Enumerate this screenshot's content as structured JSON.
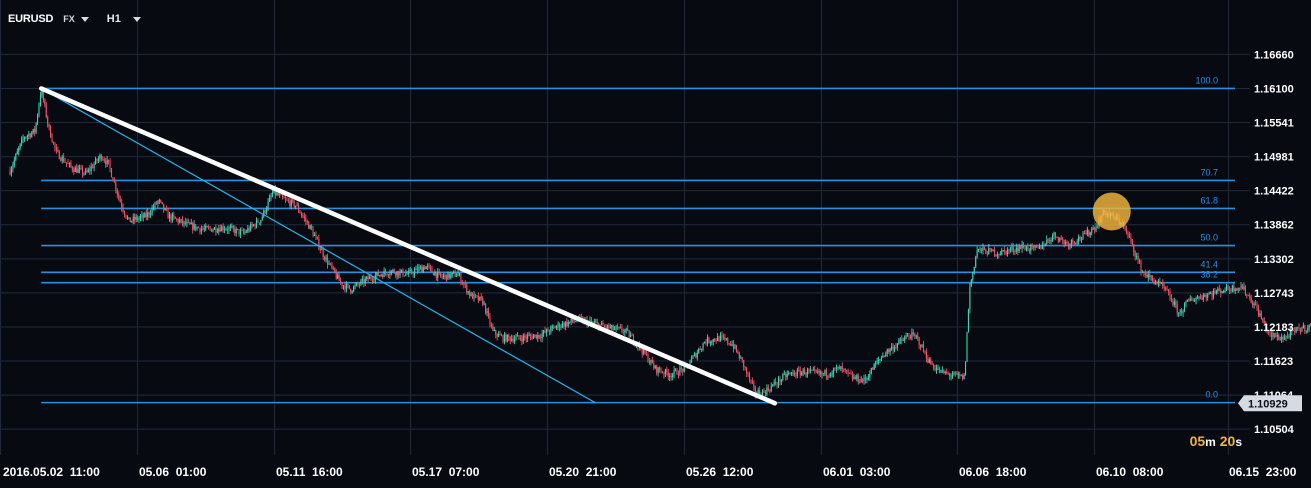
{
  "toolbar": {
    "symbol": "EURUSD",
    "market": "FX",
    "timeframe": "H1"
  },
  "timer": {
    "minutes": "05",
    "minutes_unit": "m",
    "seconds": "20",
    "seconds_unit": "s"
  },
  "colors": {
    "background": "#080a12",
    "grid": "#1c2a3c",
    "fib_line": "#2b8fe0",
    "channel_line": "#27b4e8",
    "trend_line": "#ffffff",
    "candle_up": "#3fd6b6",
    "candle_down": "#ef5466",
    "highlight_marker": "#f3b63c",
    "price_tag": "#d6dbe3",
    "axis_text": "#ffffff"
  },
  "chart_data": {
    "type": "candlestick",
    "symbol": "EURUSD",
    "timeframe": "H1",
    "x_tick_labels": [
      "2016.05.02  11:00",
      "05.06  01:00",
      "05.11  16:00",
      "05.17  07:00",
      "05.20  21:00",
      "05.26  12:00",
      "06.01  03:00",
      "06.06  18:00",
      "06.10  08:00",
      "06.15  23:00"
    ],
    "y_tick_labels": [
      "1.16660",
      "1.16100",
      "1.15541",
      "1.14981",
      "1.14422",
      "1.13862",
      "1.13302",
      "1.12743",
      "1.12183",
      "1.11623",
      "1.11064",
      "1.10504"
    ],
    "ylim": [
      1.1008,
      1.1706
    ],
    "current_price": "1.10929",
    "grid": true,
    "fibonacci": {
      "high": 1.161,
      "low": 1.1094,
      "levels": [
        {
          "label": "100.0",
          "price": 1.161
        },
        {
          "label": "70.7",
          "price": 1.1459
        },
        {
          "label": "61.8",
          "price": 1.1413
        },
        {
          "label": "50.0",
          "price": 1.1352
        },
        {
          "label": "41.4",
          "price": 1.1308
        },
        {
          "label": "38.2",
          "price": 1.1291
        },
        {
          "label": "0.0",
          "price": 1.1094
        }
      ]
    },
    "trend_line": {
      "from": {
        "date": "2016.05.03 12:00",
        "price": 1.161
      },
      "to": {
        "date": "05.28 00:00",
        "price": 1.1093
      }
    },
    "channel_line": {
      "from": {
        "date": "2016.05.03 12:00",
        "price": 1.161
      },
      "to": {
        "date": "05.22 00:00",
        "price": 1.1094
      }
    },
    "highlight": {
      "date": "06.08 06:00",
      "price": 1.1408
    },
    "price_path": [
      [
        "05.02 11:00",
        1.1475
      ],
      [
        "05.02 22:00",
        1.153
      ],
      [
        "05.03 07:00",
        1.154
      ],
      [
        "05.03 12:00",
        1.161
      ],
      [
        "05.03 18:00",
        1.1545
      ],
      [
        "05.04 00:00",
        1.1505
      ],
      [
        "05.04 12:00",
        1.148
      ],
      [
        "05.05 00:00",
        1.147
      ],
      [
        "05.05 06:00",
        1.1485
      ],
      [
        "05.05 12:00",
        1.15
      ],
      [
        "05.05 18:00",
        1.1485
      ],
      [
        "05.06 04:00",
        1.142
      ],
      [
        "05.06 10:00",
        1.1392
      ],
      [
        "05.07 00:00",
        1.14
      ],
      [
        "05.07 10:00",
        1.1425
      ],
      [
        "05.07 18:00",
        1.14
      ],
      [
        "05.08 10:00",
        1.1385
      ],
      [
        "05.09 00:00",
        1.1378
      ],
      [
        "05.09 14:00",
        1.1382
      ],
      [
        "05.10 06:00",
        1.1372
      ],
      [
        "05.10 20:00",
        1.1395
      ],
      [
        "05.11 06:00",
        1.144
      ],
      [
        "05.11 16:00",
        1.1425
      ],
      [
        "05.12 00:00",
        1.1418
      ],
      [
        "05.12 12:00",
        1.138
      ],
      [
        "05.13 00:00",
        1.133
      ],
      [
        "05.13 12:00",
        1.129
      ],
      [
        "05.13 20:00",
        1.128
      ],
      [
        "05.14 12:00",
        1.13
      ],
      [
        "05.15 04:00",
        1.131
      ],
      [
        "05.15 18:00",
        1.1305
      ],
      [
        "05.16 08:00",
        1.1318
      ],
      [
        "05.16 20:00",
        1.13
      ],
      [
        "05.17 10:00",
        1.1305
      ],
      [
        "05.17 20:00",
        1.127
      ],
      [
        "05.18 06:00",
        1.126
      ],
      [
        "05.18 14:00",
        1.121
      ],
      [
        "05.18 22:00",
        1.12
      ],
      [
        "05.19 12:00",
        1.12
      ],
      [
        "05.20 04:00",
        1.1205
      ],
      [
        "05.20 18:00",
        1.122
      ],
      [
        "05.21 10:00",
        1.123
      ],
      [
        "05.22 02:00",
        1.1222
      ],
      [
        "05.22 14:00",
        1.1215
      ],
      [
        "05.23 00:00",
        1.1212
      ],
      [
        "05.23 12:00",
        1.1185
      ],
      [
        "05.24 00:00",
        1.115
      ],
      [
        "05.24 12:00",
        1.114
      ],
      [
        "05.25 00:00",
        1.115
      ],
      [
        "05.25 08:00",
        1.1172
      ],
      [
        "05.25 16:00",
        1.1195
      ],
      [
        "05.26 04:00",
        1.12
      ],
      [
        "05.26 14:00",
        1.119
      ],
      [
        "05.26 22:00",
        1.116
      ],
      [
        "05.27 08:00",
        1.111
      ],
      [
        "05.27 16:00",
        1.1112
      ],
      [
        "05.28 00:00",
        1.1125
      ],
      [
        "05.28 10:00",
        1.114
      ],
      [
        "05.29 00:00",
        1.1145
      ],
      [
        "05.29 14:00",
        1.114
      ],
      [
        "05.30 04:00",
        1.115
      ],
      [
        "05.30 14:00",
        1.1135
      ],
      [
        "05.31 00:00",
        1.113
      ],
      [
        "05.31 08:00",
        1.1155
      ],
      [
        "05.31 16:00",
        1.1175
      ],
      [
        "06.01 02:00",
        1.119
      ],
      [
        "06.01 12:00",
        1.1205
      ],
      [
        "06.01 18:00",
        1.12
      ],
      [
        "06.02 04:00",
        1.116
      ],
      [
        "06.02 12:00",
        1.1145
      ],
      [
        "06.02 20:00",
        1.114
      ],
      [
        "06.03 08:00",
        1.1135
      ],
      [
        "06.03 12:00",
        1.128
      ],
      [
        "06.03 18:00",
        1.1345
      ],
      [
        "06.04 12:00",
        1.134
      ],
      [
        "06.05 06:00",
        1.135
      ],
      [
        "06.05 18:00",
        1.1345
      ],
      [
        "06.06 08:00",
        1.137
      ],
      [
        "06.06 18:00",
        1.1355
      ],
      [
        "06.07 08:00",
        1.1368
      ],
      [
        "06.07 18:00",
        1.1385
      ],
      [
        "06.08 00:00",
        1.1408
      ],
      [
        "06.08 06:00",
        1.14
      ],
      [
        "06.08 14:00",
        1.139
      ],
      [
        "06.08 22:00",
        1.1355
      ],
      [
        "06.09 06:00",
        1.131
      ],
      [
        "06.09 12:00",
        1.13
      ],
      [
        "06.09 22:00",
        1.1285
      ],
      [
        "06.10 04:00",
        1.127
      ],
      [
        "06.10 12:00",
        1.124
      ],
      [
        "06.10 20:00",
        1.1262
      ],
      [
        "06.11 08:00",
        1.127
      ],
      [
        "06.12 00:00",
        1.128
      ],
      [
        "06.12 14:00",
        1.1285
      ],
      [
        "06.13 02:00",
        1.125
      ],
      [
        "06.13 12:00",
        1.1205
      ],
      [
        "06.14 00:00",
        1.12
      ],
      [
        "06.14 12:00",
        1.1215
      ],
      [
        "06.15 00:00",
        1.122
      ],
      [
        "06.15 10:00",
        1.125
      ],
      [
        "06.15 18:00",
        1.1265
      ],
      [
        "06.15 23:00",
        1.1272
      ]
    ]
  }
}
